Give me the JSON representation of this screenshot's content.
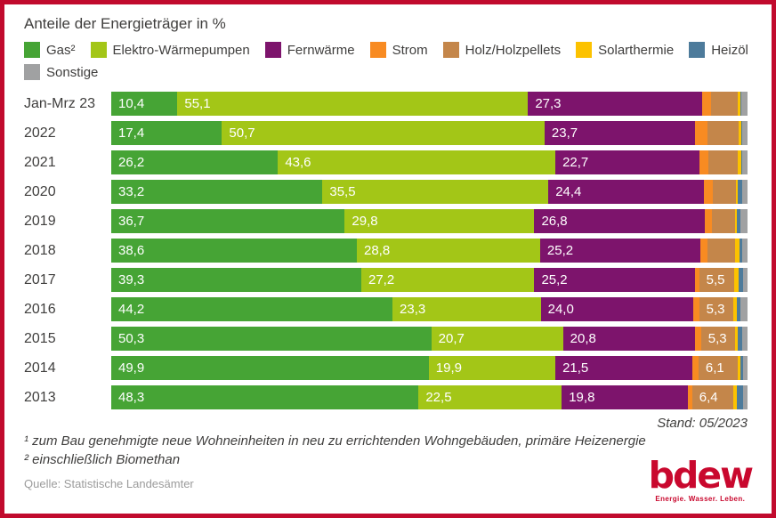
{
  "title": "Anteile der Energieträger in %",
  "colors": {
    "gas": "#46a435",
    "ewp": "#a3c617",
    "fernwaerme": "#7d146c",
    "strom": "#f88b22",
    "holz": "#c4864a",
    "solar": "#fcc200",
    "heizoel": "#4d7b9b",
    "sonstige": "#a0a1a2",
    "frame_red": "#c10a2d",
    "logo_red": "#c9082e",
    "text_dark": "#3f3e3d",
    "text_source": "#9b9b9b",
    "bar_label_white": "#ffffff"
  },
  "legend": {
    "items": [
      {
        "key": "gas",
        "label": "Gas²"
      },
      {
        "key": "ewp",
        "label": "Elektro-Wärmepumpen"
      },
      {
        "key": "fernwaerme",
        "label": "Fernwärme"
      },
      {
        "key": "strom",
        "label": "Strom"
      },
      {
        "key": "holz",
        "label": "Holz/Holzpellets"
      },
      {
        "key": "solar",
        "label": "Solarthermie"
      },
      {
        "key": "heizoel",
        "label": "Heizöl"
      },
      {
        "key": "sonstige",
        "label": "Sonstige"
      }
    ]
  },
  "chart_data": {
    "type": "bar",
    "orientation": "horizontal",
    "stacked": true,
    "x_range": [
      0,
      100
    ],
    "grid": false,
    "legend_position": "top",
    "label_min": 5,
    "decimal_separator": ",",
    "categories": [
      "Jan-Mrz 23",
      "2022",
      "2021",
      "2020",
      "2019",
      "2018",
      "2017",
      "2016",
      "2015",
      "2014",
      "2013"
    ],
    "series": [
      {
        "name": "Gas²",
        "color": "gas",
        "values": [
          10.4,
          17.4,
          26.2,
          33.2,
          36.7,
          38.6,
          39.3,
          44.2,
          50.3,
          49.9,
          48.3
        ]
      },
      {
        "name": "Elektro-Wärmepumpen",
        "color": "ewp",
        "values": [
          55.1,
          50.7,
          43.6,
          35.5,
          29.8,
          28.8,
          27.2,
          23.3,
          20.7,
          19.9,
          22.5
        ]
      },
      {
        "name": "Fernwärme",
        "color": "fernwaerme",
        "values": [
          27.3,
          23.7,
          22.7,
          24.4,
          26.8,
          25.2,
          25.2,
          24.0,
          20.8,
          21.5,
          19.8
        ]
      },
      {
        "name": "Strom",
        "color": "strom",
        "values": [
          1.5,
          1.9,
          1.3,
          1.4,
          1.1,
          1.1,
          0.7,
          0.9,
          0.9,
          1.0,
          0.7
        ]
      },
      {
        "name": "Holz/Holzpellets",
        "color": "holz",
        "values": [
          4.2,
          4.9,
          4.7,
          3.7,
          3.6,
          4.4,
          5.5,
          5.3,
          5.3,
          6.1,
          6.4
        ]
      },
      {
        "name": "Solarthermie",
        "color": "solar",
        "values": [
          0.4,
          0.4,
          0.5,
          0.3,
          0.3,
          0.7,
          0.7,
          0.6,
          0.5,
          0.5,
          0.6
        ]
      },
      {
        "name": "Heizöl",
        "color": "heizoel",
        "values": [
          0.1,
          0.2,
          0.2,
          0.6,
          0.6,
          0.3,
          0.7,
          0.6,
          0.7,
          0.4,
          1.0
        ]
      },
      {
        "name": "Sonstige",
        "color": "sonstige",
        "values": [
          1.0,
          0.8,
          0.8,
          0.9,
          1.1,
          0.9,
          0.7,
          1.1,
          0.8,
          0.7,
          0.7
        ]
      }
    ]
  },
  "stand": "Stand: 05/2023",
  "footnotes": {
    "line1": "¹ zum Bau genehmigte neue Wohneinheiten in neu zu errichtenden Wohngebäuden, primäre Heizenergie",
    "line2": "² einschließlich Biomethan"
  },
  "source": "Quelle: Statistische Landesämter",
  "logo": {
    "text": "bdew",
    "tagline": "Energie. Wasser. Leben."
  }
}
